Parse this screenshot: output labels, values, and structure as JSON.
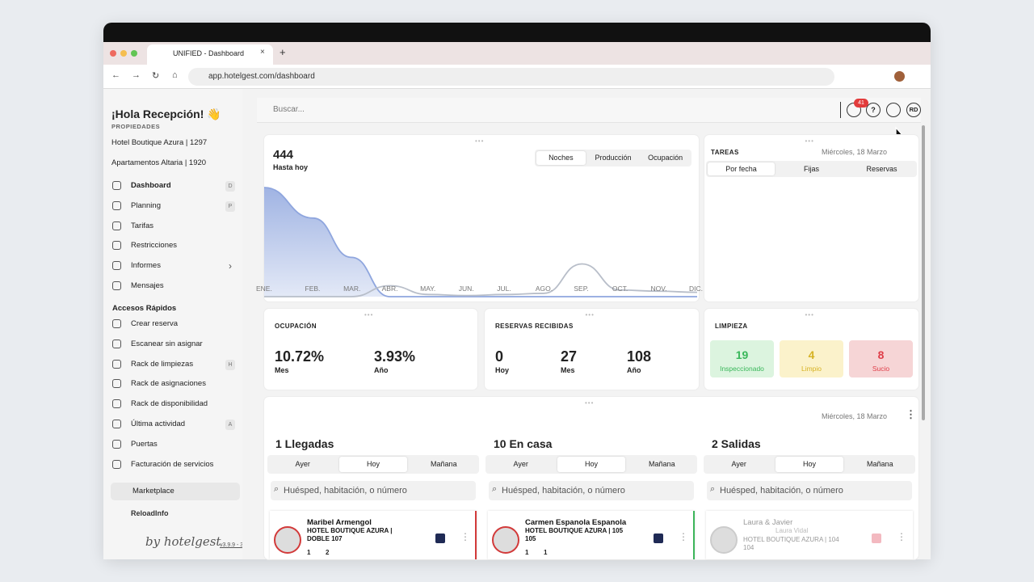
{
  "browser": {
    "tab_title": "UNIFIED - Dashboard",
    "url": "app.hotelgest.com/dashboard"
  },
  "sidebar": {
    "greeting": "¡Hola Recepción! 👋",
    "properties_label": "PROPIEDADES",
    "properties": [
      "Hotel Boutique Azura | 1297",
      "Apartamentos Altaria | 1920"
    ],
    "nav": [
      {
        "label": "Dashboard",
        "shortcut": "D"
      },
      {
        "label": "Planning",
        "shortcut": "P"
      },
      {
        "label": "Tarifas"
      },
      {
        "label": "Restricciones"
      },
      {
        "label": "Informes"
      },
      {
        "label": "Mensajes"
      }
    ],
    "quick_access_title": "Accesos Rápidos",
    "quick_access": [
      {
        "label": "Crear reserva"
      },
      {
        "label": "Escanear sin asignar"
      },
      {
        "label": "Rack de limpiezas",
        "shortcut": "H"
      },
      {
        "label": "Rack de asignaciones"
      },
      {
        "label": "Rack de disponibilidad"
      },
      {
        "label": "Última actividad",
        "shortcut": "A"
      },
      {
        "label": "Puertas"
      },
      {
        "label": "Facturación de servicios"
      }
    ],
    "marketplace": "Marketplace",
    "reload": "ReloadInfo",
    "brand": "by hotelgest",
    "version": "v3.9.9 - 3"
  },
  "topbar": {
    "search_placeholder": "Buscar...",
    "notifications": "41",
    "help": "?",
    "avatar": "RD"
  },
  "chart_card": {
    "total": "444",
    "subtitle": "Hasta hoy",
    "tabs": [
      "Noches",
      "Producción",
      "Ocupación"
    ],
    "chart_data": {
      "type": "area",
      "categories": [
        "ENE.",
        "FEB.",
        "MAR.",
        "ABR.",
        "MAY.",
        "JUN.",
        "JUL.",
        "AGO.",
        "SEP.",
        "OCT.",
        "NOV.",
        "DIC."
      ],
      "ylim": [
        0,
        100
      ],
      "series": [
        {
          "color": "#8fa6de",
          "values": [
            100,
            72,
            36,
            0,
            0,
            0,
            0,
            0,
            0,
            0,
            0,
            0
          ]
        },
        {
          "color": "#b8bec9",
          "values": [
            0,
            0,
            0,
            10,
            2,
            1,
            2,
            3,
            30,
            6,
            5,
            4
          ]
        }
      ]
    }
  },
  "tasks": {
    "title": "TAREAS",
    "date": "Miércoles, 18 Marzo",
    "tabs": [
      "Por fecha",
      "Fijas",
      "Reservas"
    ]
  },
  "occupancy": {
    "title": "OCUPACIÓN",
    "stats": [
      {
        "value": "10.72%",
        "label": "Mes"
      },
      {
        "value": "3.93%",
        "label": "Año"
      }
    ]
  },
  "bookings": {
    "title": "RESERVAS RECIBIDAS",
    "stats": [
      {
        "value": "0",
        "label": "Hoy"
      },
      {
        "value": "27",
        "label": "Mes"
      },
      {
        "value": "108",
        "label": "Año"
      }
    ]
  },
  "cleaning": {
    "title": "LIMPIEZA",
    "stats": [
      {
        "value": "19",
        "label": "Inspeccionado"
      },
      {
        "value": "4",
        "label": "Limpio"
      },
      {
        "value": "8",
        "label": "Sucio"
      }
    ]
  },
  "movements": {
    "date": "Miércoles, 18 Marzo",
    "columns": [
      {
        "title": "1 Llegadas",
        "tabs": [
          "Ayer",
          "Hoy",
          "Mañana"
        ],
        "search": "Huésped, habitación, o número",
        "guest": {
          "name": "Maribel Armengol",
          "hotel": "HOTEL BOUTIQUE AZURA |",
          "room": "DOBLE 107",
          "adults": "1",
          "nights": "2"
        }
      },
      {
        "title": "10 En casa",
        "tabs": [
          "Ayer",
          "Hoy",
          "Mañana"
        ],
        "search": "Huésped, habitación, o número",
        "guest": {
          "name": "Carmen Espanola Espanola",
          "hotel": "HOTEL BOUTIQUE AZURA | 105",
          "room": "105",
          "adults": "1",
          "nights": "1"
        }
      },
      {
        "title": "2 Salidas",
        "tabs": [
          "Ayer",
          "Hoy",
          "Mañana"
        ],
        "search": "Huésped, habitación, o número",
        "guest": {
          "name": "Laura & Javier",
          "sub": "Laura Vidal",
          "hotel": "HOTEL BOUTIQUE AZURA | 104",
          "room": "104"
        }
      }
    ]
  }
}
